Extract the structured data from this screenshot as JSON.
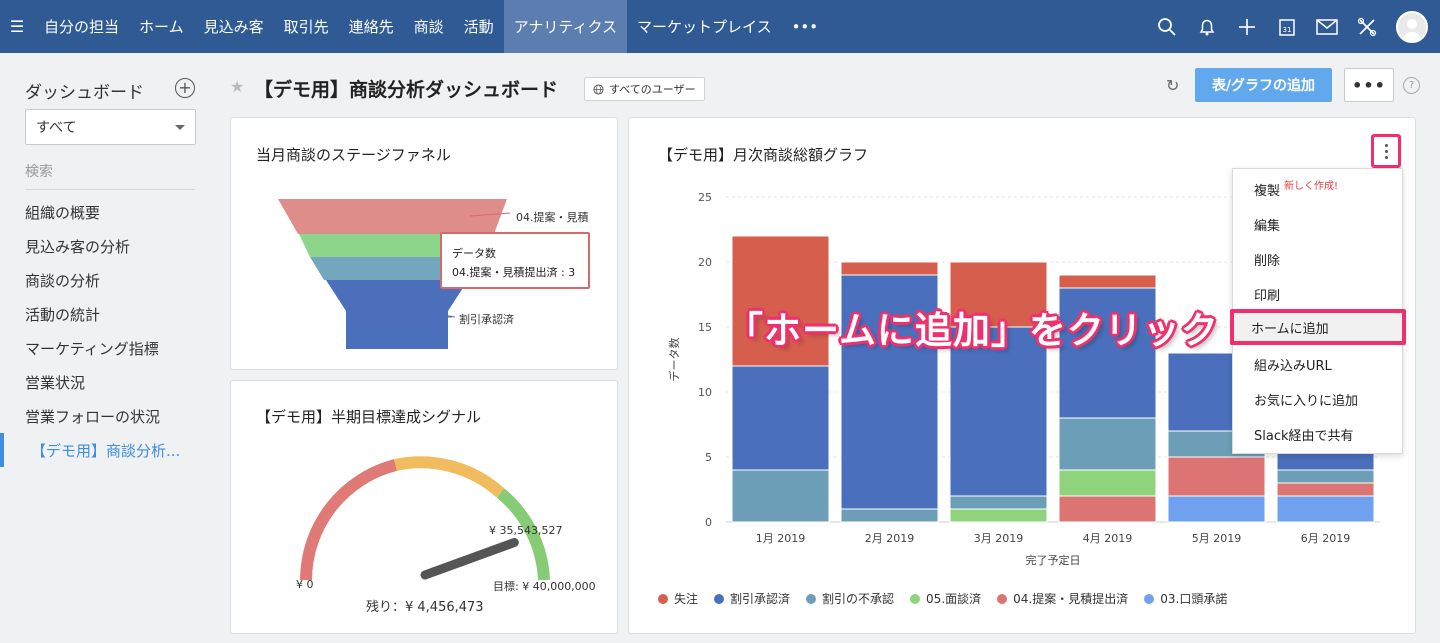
{
  "nav": {
    "items": [
      "自分の担当",
      "ホーム",
      "見込み客",
      "取引先",
      "連絡先",
      "商談",
      "活動",
      "アナリティクス",
      "マーケットプレイス",
      "•••"
    ],
    "active_index": 7,
    "icons": [
      "search-icon",
      "bell-icon",
      "plus-icon",
      "calendar-icon",
      "mail-icon",
      "tools-icon",
      "avatar"
    ]
  },
  "sidebar": {
    "title": "ダッシュボード",
    "select_value": "すべて",
    "search_placeholder": "検索",
    "items": [
      "組織の概要",
      "見込み客の分析",
      "商談の分析",
      "活動の統計",
      "マーケティング指標",
      "営業状況",
      "営業フォローの状況",
      "【デモ用】商談分析..."
    ],
    "active_index": 7
  },
  "header": {
    "title": "【デモ用】商談分析ダッシュボード",
    "users_button": "すべてのユーザー",
    "add_button": "表/グラフの追加",
    "more_button": "•••",
    "help": "?"
  },
  "funnel_card": {
    "title": "当月商談のステージファネル",
    "label_top": "04.提案・見積",
    "label_bottom": "割引承認済",
    "tooltip_line1": "データ数",
    "tooltip_line2": "04.提案・見積提出済 : 3"
  },
  "gauge_card": {
    "title": "【デモ用】半期目標達成シグナル",
    "min_label": "¥ 0",
    "target_label": "目標: ¥ 40,000,000",
    "current_label": "¥ 35,543,527",
    "remaining_label": "残り：¥ 4,456,473",
    "progress_fraction": 0.889
  },
  "bar_card": {
    "title": "【デモ用】月次商談総額グラフ",
    "callout": "「ホームに追加」をクリック"
  },
  "chart_data": {
    "type": "bar",
    "stacked": true,
    "categories": [
      "1月 2019",
      "2月 2019",
      "3月 2019",
      "4月 2019",
      "5月 2019",
      "6月 2019"
    ],
    "xlabel": "完了予定日",
    "ylabel": "データ数",
    "ylim": [
      0,
      25
    ],
    "yticks": [
      "0",
      "5",
      "10",
      "15",
      "20",
      "25"
    ],
    "grid": true,
    "legend_position": "bottom",
    "series": [
      {
        "name": "03.口頭承諾",
        "color": "#6fa1ee",
        "values": [
          0,
          0,
          0,
          0,
          2,
          2
        ]
      },
      {
        "name": "04.提案・見積提出済",
        "color": "#dc7474",
        "values": [
          0,
          0,
          0,
          2,
          3,
          1
        ]
      },
      {
        "name": "05.面談済",
        "color": "#8fd47c",
        "values": [
          0,
          0,
          1,
          2,
          0,
          0
        ]
      },
      {
        "name": "割引の不承認",
        "color": "#6c9fb7",
        "values": [
          4,
          1,
          1,
          4,
          2,
          1
        ]
      },
      {
        "name": "割引承認済",
        "color": "#4a70bd",
        "values": [
          8,
          18,
          13,
          10,
          6,
          2
        ]
      },
      {
        "name": "失注",
        "color": "#d55e4d",
        "values": [
          10,
          1,
          5,
          1,
          0,
          0
        ]
      }
    ],
    "legend_order": [
      "失注",
      "割引承認済",
      "割引の不承認",
      "05.面談済",
      "04.提案・見積提出済",
      "03.口頭承諾"
    ]
  },
  "context_menu": {
    "items": [
      "複製",
      "編集",
      "削除",
      "印刷",
      "ホームに追加",
      "組み込みURL",
      "お気に入りに追加",
      "Slack経由で共有"
    ],
    "new_badge": "新しく作成!",
    "highlight_index": 4
  }
}
